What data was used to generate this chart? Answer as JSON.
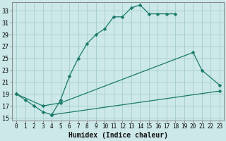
{
  "xlabel": "Humidex (Indice chaleur)",
  "bg_color": "#cce8e8",
  "grid_color": "#aad0d0",
  "line_color": "#1a7a6a",
  "xlim": [
    -0.5,
    23.5
  ],
  "ylim": [
    14.5,
    34.5
  ],
  "yticks": [
    15,
    17,
    19,
    21,
    23,
    25,
    27,
    29,
    31,
    33
  ],
  "xticks": [
    0,
    1,
    2,
    3,
    4,
    5,
    6,
    7,
    8,
    9,
    10,
    11,
    12,
    13,
    14,
    15,
    16,
    17,
    18,
    19,
    20,
    21,
    22,
    23
  ],
  "line1_x": [
    0,
    1,
    2,
    3,
    4,
    5,
    6,
    7,
    8,
    9,
    10,
    11,
    12,
    13,
    14,
    15,
    16,
    17,
    18
  ],
  "line1_y": [
    19,
    18,
    17,
    16,
    15.5,
    18,
    22,
    25,
    27.5,
    29,
    30,
    32,
    32,
    33.5,
    34,
    32.5,
    32.5,
    32.5,
    32.5
  ],
  "line2_x": [
    0,
    3,
    5,
    20,
    21,
    23
  ],
  "line2_y": [
    19,
    17,
    17.5,
    26,
    23,
    20.5
  ],
  "line3_x": [
    4,
    23
  ],
  "line3_y": [
    15.5,
    19.5
  ],
  "xlabel_fontsize": 7,
  "tick_fontsize": 6,
  "marker_size": 2.5,
  "line_width": 0.9
}
